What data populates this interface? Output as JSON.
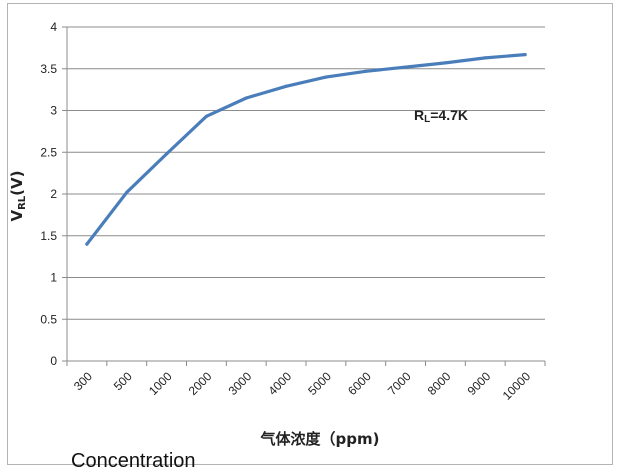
{
  "chart_data": {
    "type": "line",
    "categories": [
      "300",
      "500",
      "1000",
      "2000",
      "3000",
      "4000",
      "5000",
      "6000",
      "7000",
      "8000",
      "9000",
      "10000"
    ],
    "series": [
      {
        "values": [
          1.4,
          2.02,
          2.48,
          2.93,
          3.15,
          3.29,
          3.4,
          3.47,
          3.52,
          3.57,
          3.63,
          3.67
        ],
        "color": "#4a7ebb"
      }
    ],
    "ylim": [
      0,
      4
    ],
    "yticks": [
      0,
      0.5,
      1,
      1.5,
      2,
      2.5,
      3,
      3.5,
      4
    ],
    "ylabel": "V",
    "ylabel_sub": "RL",
    "ylabel_suffix": "(V)",
    "xlabel": "气体浓度（ppm)",
    "annotation": {
      "main": "R",
      "sub": "L",
      "rest": "=4.7K"
    },
    "grid": true,
    "legend": "none"
  },
  "caption": "Concentration"
}
